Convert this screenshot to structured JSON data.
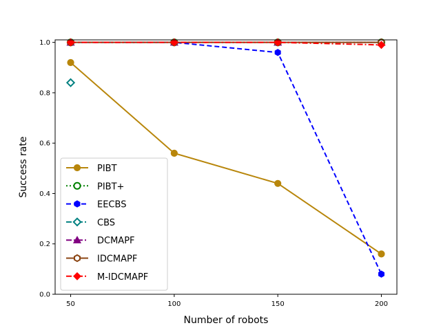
{
  "chart_data": {
    "type": "line",
    "xlabel": "Number of robots",
    "ylabel": "Success rate",
    "xlim": [
      42.5,
      207.5
    ],
    "ylim": [
      0.0,
      1.01
    ],
    "x_ticks": [
      50,
      100,
      150,
      200
    ],
    "y_ticks": [
      0.0,
      0.2,
      0.4,
      0.6,
      0.8,
      1.0
    ],
    "x_tick_labels": [
      "50",
      "100",
      "150",
      "200"
    ],
    "y_tick_labels": [
      "0.0",
      "0.2",
      "0.4",
      "0.6",
      "0.8",
      "1.0"
    ],
    "grid": false,
    "legend_position": "lower-left",
    "series": [
      {
        "name": "PIBT",
        "color": "#b8860b",
        "linestyle": "solid",
        "marker": "circle-filled",
        "x": [
          50,
          100,
          150,
          200
        ],
        "y": [
          0.92,
          0.56,
          0.44,
          0.16
        ]
      },
      {
        "name": "PIBT+",
        "color": "#008000",
        "linestyle": "dotted",
        "marker": "circle-open",
        "x": [
          50,
          100,
          150,
          200
        ],
        "y": [
          1.0,
          1.0,
          1.0,
          1.0
        ]
      },
      {
        "name": "EECBS",
        "color": "#0000ff",
        "linestyle": "dashed",
        "marker": "hexagon-filled",
        "x": [
          50,
          100,
          150,
          200
        ],
        "y": [
          1.0,
          1.0,
          0.96,
          0.08
        ]
      },
      {
        "name": "CBS",
        "color": "#008080",
        "linestyle": "dashdot",
        "marker": "diamond-open",
        "x": [
          50
        ],
        "y": [
          0.84
        ]
      },
      {
        "name": "DCMAPF",
        "color": "#800080",
        "linestyle": "dashdot",
        "marker": "triangle-filled",
        "x": [
          50,
          100,
          150,
          200
        ],
        "y": [
          1.0,
          1.0,
          1.0,
          1.0
        ]
      },
      {
        "name": "IDCMAPF",
        "color": "#8b4513",
        "linestyle": "solid",
        "marker": "hexagon-open",
        "x": [
          50,
          100,
          150,
          200
        ],
        "y": [
          1.0,
          1.0,
          1.0,
          1.0
        ]
      },
      {
        "name": "M-IDCMAPF",
        "color": "#ff0000",
        "linestyle": "dashdot",
        "marker": "diamond-filled",
        "x": [
          50,
          100,
          150,
          200
        ],
        "y": [
          1.0,
          1.0,
          1.0,
          0.99
        ]
      }
    ]
  }
}
